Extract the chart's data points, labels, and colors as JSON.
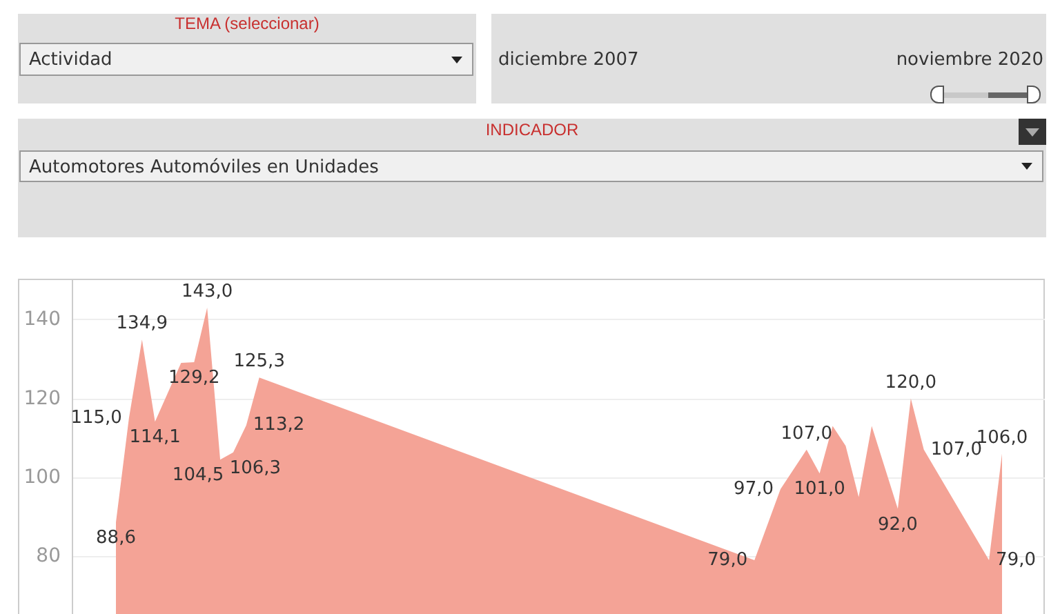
{
  "chart_data": {
    "type": "area",
    "annotations": [
      "TEMA (seleccionar)",
      "Actividad",
      "diciembre 2007",
      "noviembre 2020",
      "INDICADOR",
      "Automotores Automóviles en Unidades"
    ],
    "categories": [
      null,
      null,
      null,
      null,
      null,
      null,
      null,
      null,
      null,
      null,
      null,
      null,
      null,
      null,
      null,
      null,
      null,
      null,
      null,
      null,
      null,
      null,
      null,
      null,
      null,
      null,
      null,
      null,
      null,
      null,
      null,
      null,
      null,
      null,
      null,
      null,
      null,
      null,
      null,
      null,
      null,
      null,
      null,
      null,
      null,
      null,
      null,
      null,
      null,
      null,
      null,
      null,
      null,
      null,
      null,
      null,
      null,
      null,
      null,
      null,
      null,
      null,
      null,
      null,
      null,
      null,
      null,
      null,
      null
    ],
    "series": [
      {
        "color": "#f4a396",
        "values": [
          88.6,
          115.0,
          134.9,
          114.1,
          null,
          129.0,
          129.2,
          143.0,
          104.5,
          106.3,
          113.2,
          125.3,
          null,
          null,
          null,
          null,
          null,
          null,
          null,
          null,
          null,
          null,
          null,
          null,
          null,
          null,
          null,
          null,
          null,
          null,
          null,
          null,
          null,
          null,
          null,
          null,
          null,
          null,
          null,
          null,
          null,
          null,
          null,
          null,
          null,
          null,
          null,
          null,
          null,
          79.0,
          null,
          97.0,
          null,
          107.0,
          101.0,
          113,
          108,
          95,
          113,
          null,
          92.0,
          120.0,
          107.0,
          null,
          null,
          null,
          null,
          79.0,
          106.0
        ],
        "value_labels": [
          "88,6",
          "115,0",
          "134,9",
          "114,1",
          null,
          null,
          "129,2",
          "143,0",
          "104,5",
          "106,3",
          "113,2",
          "125,3",
          null,
          null,
          null,
          null,
          null,
          null,
          null,
          null,
          null,
          null,
          null,
          null,
          null,
          null,
          null,
          null,
          null,
          null,
          null,
          null,
          null,
          null,
          null,
          null,
          null,
          null,
          null,
          null,
          null,
          null,
          null,
          null,
          null,
          null,
          null,
          null,
          null,
          "79,0",
          null,
          "97,0",
          null,
          "107,0",
          "101,0",
          null,
          null,
          null,
          null,
          null,
          "92,0",
          "120,0",
          "107,0",
          null,
          null,
          null,
          null,
          "79,0",
          "106,0"
        ]
      }
    ],
    "ylim": [
      65,
      150
    ],
    "yticks": [
      80,
      100,
      120,
      140
    ],
    "grid": "y",
    "legend": false,
    "tick_labels": "y",
    "marker": "none"
  }
}
